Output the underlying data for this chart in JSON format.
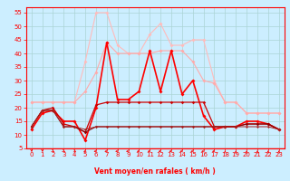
{
  "x": [
    0,
    1,
    2,
    3,
    4,
    5,
    6,
    7,
    8,
    9,
    10,
    11,
    12,
    13,
    14,
    15,
    16,
    17,
    18,
    19,
    20,
    21,
    22,
    23
  ],
  "series": [
    {
      "name": "rafales_light1",
      "color": "#ffbbbb",
      "lw": 0.8,
      "ms": 2.0,
      "y": [
        22,
        22,
        22,
        22,
        22,
        37,
        55,
        55,
        43,
        40,
        40,
        47,
        51,
        43,
        43,
        45,
        45,
        30,
        22,
        22,
        18,
        18,
        18,
        18
      ]
    },
    {
      "name": "rafales_light2",
      "color": "#ffaaaa",
      "lw": 0.8,
      "ms": 2.0,
      "y": [
        22,
        22,
        22,
        22,
        22,
        26,
        33,
        44,
        40,
        40,
        40,
        40,
        41,
        41,
        41,
        37,
        30,
        29,
        22,
        22,
        18,
        18,
        18,
        18
      ]
    },
    {
      "name": "vent_red_main",
      "color": "#ff0000",
      "lw": 1.2,
      "ms": 2.0,
      "y": [
        12,
        18,
        19,
        15,
        15,
        8,
        20,
        44,
        23,
        23,
        26,
        41,
        26,
        41,
        25,
        30,
        17,
        12,
        13,
        13,
        15,
        15,
        14,
        12
      ]
    },
    {
      "name": "vent_darkred1",
      "color": "#cc0000",
      "lw": 0.9,
      "ms": 1.8,
      "y": [
        13,
        19,
        20,
        14,
        13,
        11,
        21,
        22,
        22,
        22,
        22,
        22,
        22,
        22,
        22,
        22,
        22,
        13,
        13,
        13,
        14,
        14,
        14,
        12
      ]
    },
    {
      "name": "vent_darkred2",
      "color": "#880000",
      "lw": 0.8,
      "ms": 1.5,
      "y": [
        13,
        19,
        19,
        13,
        13,
        11,
        13,
        13,
        13,
        13,
        13,
        13,
        13,
        13,
        13,
        13,
        13,
        13,
        13,
        13,
        14,
        14,
        14,
        12
      ]
    },
    {
      "name": "vent_darkred3",
      "color": "#aa2222",
      "lw": 0.7,
      "ms": 1.5,
      "y": [
        13,
        19,
        19,
        13,
        13,
        12,
        13,
        13,
        13,
        13,
        13,
        13,
        13,
        13,
        13,
        13,
        13,
        13,
        13,
        13,
        13,
        13,
        13,
        12
      ]
    }
  ],
  "wind_arrows": [
    [
      0,
      0
    ],
    [
      1,
      0
    ],
    [
      2,
      30
    ],
    [
      3,
      30
    ],
    [
      4,
      45
    ],
    [
      5,
      -45
    ],
    [
      6,
      -60
    ],
    [
      7,
      -60
    ],
    [
      8,
      -60
    ],
    [
      9,
      -60
    ],
    [
      10,
      -60
    ],
    [
      11,
      -60
    ],
    [
      12,
      -60
    ],
    [
      13,
      -60
    ],
    [
      14,
      -60
    ],
    [
      15,
      -60
    ],
    [
      16,
      -60
    ],
    [
      17,
      -60
    ],
    [
      18,
      180
    ],
    [
      19,
      180
    ],
    [
      20,
      180
    ],
    [
      21,
      180
    ],
    [
      22,
      180
    ],
    [
      23,
      180
    ]
  ],
  "ylim": [
    5,
    57
  ],
  "xlim": [
    -0.5,
    23.5
  ],
  "yticks": [
    5,
    10,
    15,
    20,
    25,
    30,
    35,
    40,
    45,
    50,
    55
  ],
  "xticks": [
    0,
    1,
    2,
    3,
    4,
    5,
    6,
    7,
    8,
    9,
    10,
    11,
    12,
    13,
    14,
    15,
    16,
    17,
    18,
    19,
    20,
    21,
    22,
    23
  ],
  "xlabel": "Vent moyen/en rafales ( km/h )",
  "bg_color": "#cceeff",
  "grid_color": "#aad4d4",
  "tick_color": "#ff0000",
  "label_color": "#ff0000",
  "spine_color": "#ff0000"
}
